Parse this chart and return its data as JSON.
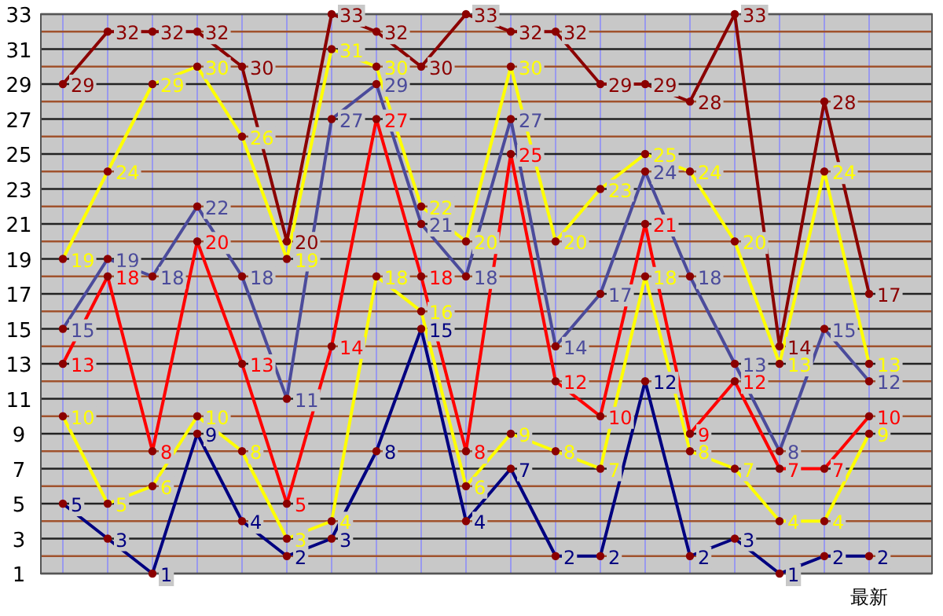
{
  "chart_data": {
    "type": "line",
    "categories": [
      null,
      null,
      null,
      null,
      null,
      null,
      null,
      null,
      null,
      null,
      null,
      null,
      null,
      null,
      null,
      null,
      null,
      null,
      "最新"
    ],
    "series": [
      {
        "color": "#8b0000",
        "values": [
          29,
          32,
          32,
          32,
          30,
          20,
          33,
          32,
          30,
          33,
          32,
          32,
          29,
          29,
          28,
          33,
          14,
          28,
          17
        ]
      },
      {
        "color": "#ffff00",
        "values": [
          19,
          24,
          29,
          30,
          26,
          19,
          31,
          30,
          22,
          20,
          30,
          20,
          23,
          25,
          24,
          20,
          13,
          24,
          13
        ]
      },
      {
        "color": "#4b4b9b",
        "values": [
          15,
          19,
          18,
          22,
          18,
          11,
          27,
          29,
          21,
          18,
          27,
          14,
          17,
          24,
          18,
          13,
          8,
          15,
          12
        ]
      },
      {
        "color": "#ff0000",
        "values": [
          13,
          18,
          8,
          20,
          13,
          5,
          14,
          27,
          18,
          8,
          25,
          12,
          10,
          21,
          9,
          12,
          7,
          7,
          10
        ]
      },
      {
        "color": "#ffff00",
        "values": [
          10,
          5,
          6,
          10,
          8,
          3,
          4,
          18,
          16,
          6,
          9,
          8,
          7,
          18,
          8,
          7,
          4,
          4,
          9
        ]
      },
      {
        "color": "#000080",
        "values": [
          5,
          3,
          1,
          9,
          4,
          2,
          3,
          8,
          15,
          4,
          7,
          2,
          2,
          12,
          2,
          3,
          1,
          2,
          2
        ]
      }
    ],
    "ylim": [
      1,
      33
    ],
    "yticks": [
      1,
      {
        "value": 2,
        "label": null
      },
      3,
      {
        "value": 4,
        "label": null
      },
      5,
      {
        "value": 6,
        "label": null
      },
      7,
      {
        "value": 8,
        "label": null
      },
      9,
      {
        "value": 10,
        "label": null
      },
      11,
      {
        "value": 12,
        "label": null
      },
      13,
      {
        "value": 14,
        "label": null
      },
      15,
      {
        "value": 16,
        "label": null
      },
      17,
      {
        "value": 18,
        "label": null
      },
      19,
      {
        "value": 20,
        "label": null
      },
      21,
      {
        "value": 22,
        "label": null
      },
      23,
      {
        "value": 24,
        "label": null
      },
      25,
      {
        "value": 26,
        "label": null
      },
      27,
      {
        "value": 28,
        "label": null
      },
      29,
      {
        "value": 30,
        "label": null
      },
      31,
      {
        "value": 32,
        "label": null
      },
      33
    ],
    "grid": true,
    "marker": "circle",
    "data_labels": true
  }
}
